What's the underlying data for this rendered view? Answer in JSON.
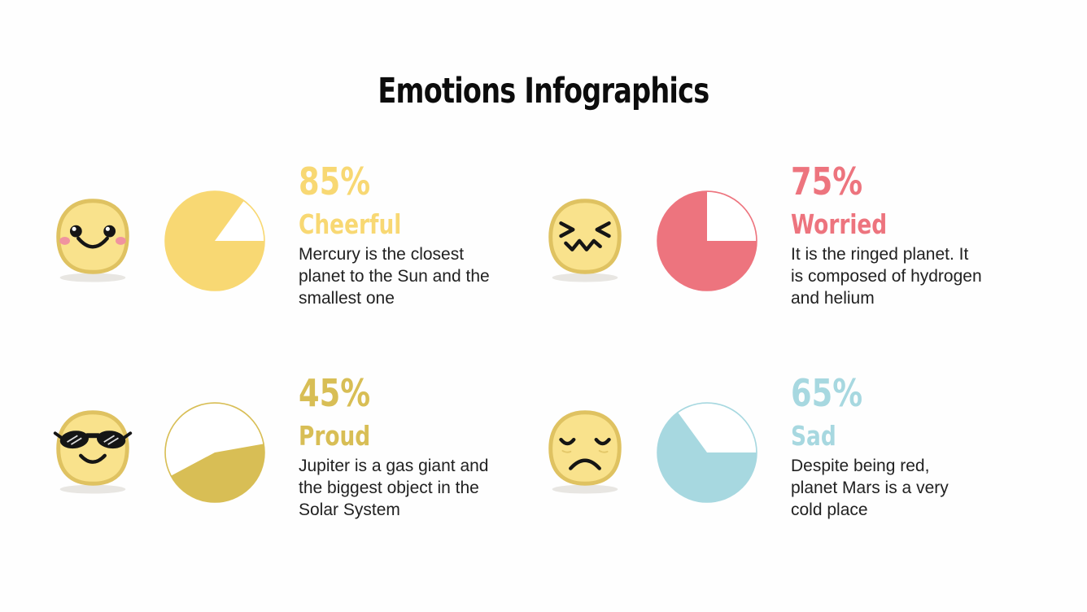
{
  "title": "Emotions Infographics",
  "colors": {
    "background": "#fefefe",
    "title_text": "#0c0c0c",
    "body_text": "#212121",
    "emoji_body": "#F9E28C",
    "emoji_outline": "#DFC261",
    "emoji_blush": "#F0939F",
    "emoji_shadow": "#E8E6E2",
    "cheerful": "#F8D873",
    "worried": "#ED747E",
    "proud": "#D8BE55",
    "sad": "#A7D8E0"
  },
  "cards": [
    {
      "id": "cheerful",
      "percent": "85%",
      "emotion": "Cheerful",
      "description": "Mercury is the closest\nplanet to the Sun and the\nsmallest one",
      "color": "#F8D873",
      "emoji": "cheerful-face",
      "pie": {
        "value": 85,
        "start_deg": 90,
        "sweep_deg": 306
      }
    },
    {
      "id": "worried",
      "percent": "75%",
      "emotion": "Worried",
      "description": "It is the ringed planet. It\nis composed of hydrogen\nand helium",
      "color": "#ED747E",
      "emoji": "worried-face",
      "pie": {
        "value": 75,
        "start_deg": 90,
        "sweep_deg": 270
      }
    },
    {
      "id": "proud",
      "percent": "45%",
      "emotion": "Proud",
      "description": "Jupiter is a gas giant and\nthe biggest object in the\nSolar System",
      "color": "#D8BE55",
      "emoji": "proud-face",
      "pie": {
        "value": 45,
        "start_deg": 80,
        "sweep_deg": 162
      }
    },
    {
      "id": "sad",
      "percent": "65%",
      "emotion": "Sad",
      "description": "Despite being red,\nplanet Mars is a very\ncold place",
      "color": "#A7D8E0",
      "emoji": "sad-face",
      "pie": {
        "value": 65,
        "start_deg": 90,
        "sweep_deg": 234
      }
    }
  ],
  "chart_data": [
    {
      "type": "pie",
      "title": "Cheerful",
      "labels": [
        "Cheerful",
        "Remainder"
      ],
      "values": [
        85,
        15
      ],
      "colors": [
        "#F8D873",
        "#FFFFFF"
      ],
      "unit": "%"
    },
    {
      "type": "pie",
      "title": "Worried",
      "labels": [
        "Worried",
        "Remainder"
      ],
      "values": [
        75,
        25
      ],
      "colors": [
        "#ED747E",
        "#FFFFFF"
      ],
      "unit": "%"
    },
    {
      "type": "pie",
      "title": "Proud",
      "labels": [
        "Proud",
        "Remainder"
      ],
      "values": [
        45,
        55
      ],
      "colors": [
        "#D8BE55",
        "#FFFFFF"
      ],
      "unit": "%"
    },
    {
      "type": "pie",
      "title": "Sad",
      "labels": [
        "Sad",
        "Remainder"
      ],
      "values": [
        65,
        35
      ],
      "colors": [
        "#A7D8E0",
        "#FFFFFF"
      ],
      "unit": "%"
    }
  ]
}
